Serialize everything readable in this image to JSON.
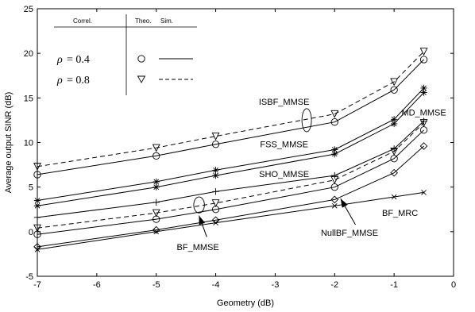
{
  "chart_data": {
    "type": "line",
    "xlabel": "Geometry (dB)",
    "ylabel": "Average output SINR (dB)",
    "xlim": [
      -7,
      0
    ],
    "ylim": [
      -5,
      25
    ],
    "xticks": [
      "-7",
      "-6",
      "-5",
      "-4",
      "-3",
      "-2",
      "-1",
      "0"
    ],
    "yticks": [
      "-5",
      "0",
      "5",
      "10",
      "15",
      "20",
      "25"
    ],
    "grid": false,
    "x": [
      -7,
      -5,
      -4,
      -2,
      -1,
      -0.5
    ],
    "legend": {
      "placement": "top-left",
      "headers": [
        "Correl.",
        "Theo.",
        "Sim."
      ],
      "rows": [
        {
          "rho": "ρ",
          "value": "= 0.4",
          "marker": "circle",
          "line": "solid"
        },
        {
          "rho": "ρ",
          "value": "= 0.8",
          "marker": "triangle-down",
          "line": "dashed"
        }
      ]
    },
    "series": [
      {
        "name": "ISBF_MMSE",
        "rho": 0.4,
        "line": "solid",
        "marker": "circle",
        "values": [
          6.4,
          8.5,
          9.8,
          12.3,
          15.9,
          19.3
        ]
      },
      {
        "name": "ISBF_MMSE",
        "rho": 0.8,
        "line": "dashed",
        "marker": "triangle-down",
        "values": [
          7.3,
          9.4,
          10.7,
          13.2,
          16.8,
          20.2
        ]
      },
      {
        "name": "MD_MMSE",
        "rho": 0.4,
        "line": "solid",
        "marker": "star",
        "values": [
          3.5,
          5.6,
          6.9,
          9.2,
          12.6,
          16.1
        ]
      },
      {
        "name": "FSS_MMSE",
        "rho": 0.4,
        "line": "solid",
        "marker": "star",
        "values": [
          2.9,
          5.0,
          6.3,
          8.7,
          12.1,
          15.6
        ]
      },
      {
        "name": "SHO_MMSE",
        "rho": 0.8,
        "line": "dashed",
        "marker": "triangle-down",
        "values": [
          0.4,
          2.1,
          3.2,
          5.8,
          9.0,
          12.2
        ]
      },
      {
        "name": "SHO_MMSE",
        "rho": 0.4,
        "line": "solid",
        "marker": "circle",
        "values": [
          -0.3,
          1.4,
          2.5,
          5.0,
          8.2,
          11.4
        ]
      },
      {
        "name": "SHO_MMSE",
        "rho": 0.4,
        "line": "solid",
        "marker": "plus",
        "values": [
          1.6,
          3.3,
          4.5,
          6.3,
          9.3,
          12.4
        ]
      },
      {
        "name": "NullBF_MMSE",
        "rho": 0.4,
        "line": "solid",
        "marker": "diamond",
        "values": [
          -1.7,
          0.2,
          1.3,
          3.6,
          6.6,
          9.6
        ]
      },
      {
        "name": "BF_MRC",
        "rho": 0.4,
        "line": "solid",
        "marker": "x",
        "values": [
          -2.0,
          0.0,
          1.0,
          2.9,
          3.9,
          4.4
        ]
      }
    ],
    "annotations": [
      {
        "text": "ISBF_MMSE",
        "x": -2.85,
        "y": 14.6
      },
      {
        "text": "MD_MMSE",
        "x": -0.5,
        "y": 13.4
      },
      {
        "text": "FSS_MMSE",
        "x": -2.85,
        "y": 9.8
      },
      {
        "text": "SHO_MMSE",
        "x": -2.85,
        "y": 6.5
      },
      {
        "text": "BF_MRC",
        "x": -0.9,
        "y": 2.1
      },
      {
        "text": "NullBF_MMSE",
        "x": -1.75,
        "y": -0.1
      },
      {
        "text": "BF_MMSE",
        "x": -4.3,
        "y": -1.7
      }
    ],
    "ellipses": [
      {
        "cx": -2.47,
        "cy": 12.5,
        "rx": 0.08,
        "ry": 1.3
      },
      {
        "cx": -4.28,
        "cy": 3.0,
        "rx": 0.09,
        "ry": 0.9
      }
    ],
    "arrows": [
      {
        "from": [
          -4.15,
          -0.6
        ],
        "to": [
          -4.28,
          1.8
        ]
      },
      {
        "from": [
          -1.65,
          0.8
        ],
        "to": [
          -1.9,
          3.7
        ]
      }
    ]
  }
}
